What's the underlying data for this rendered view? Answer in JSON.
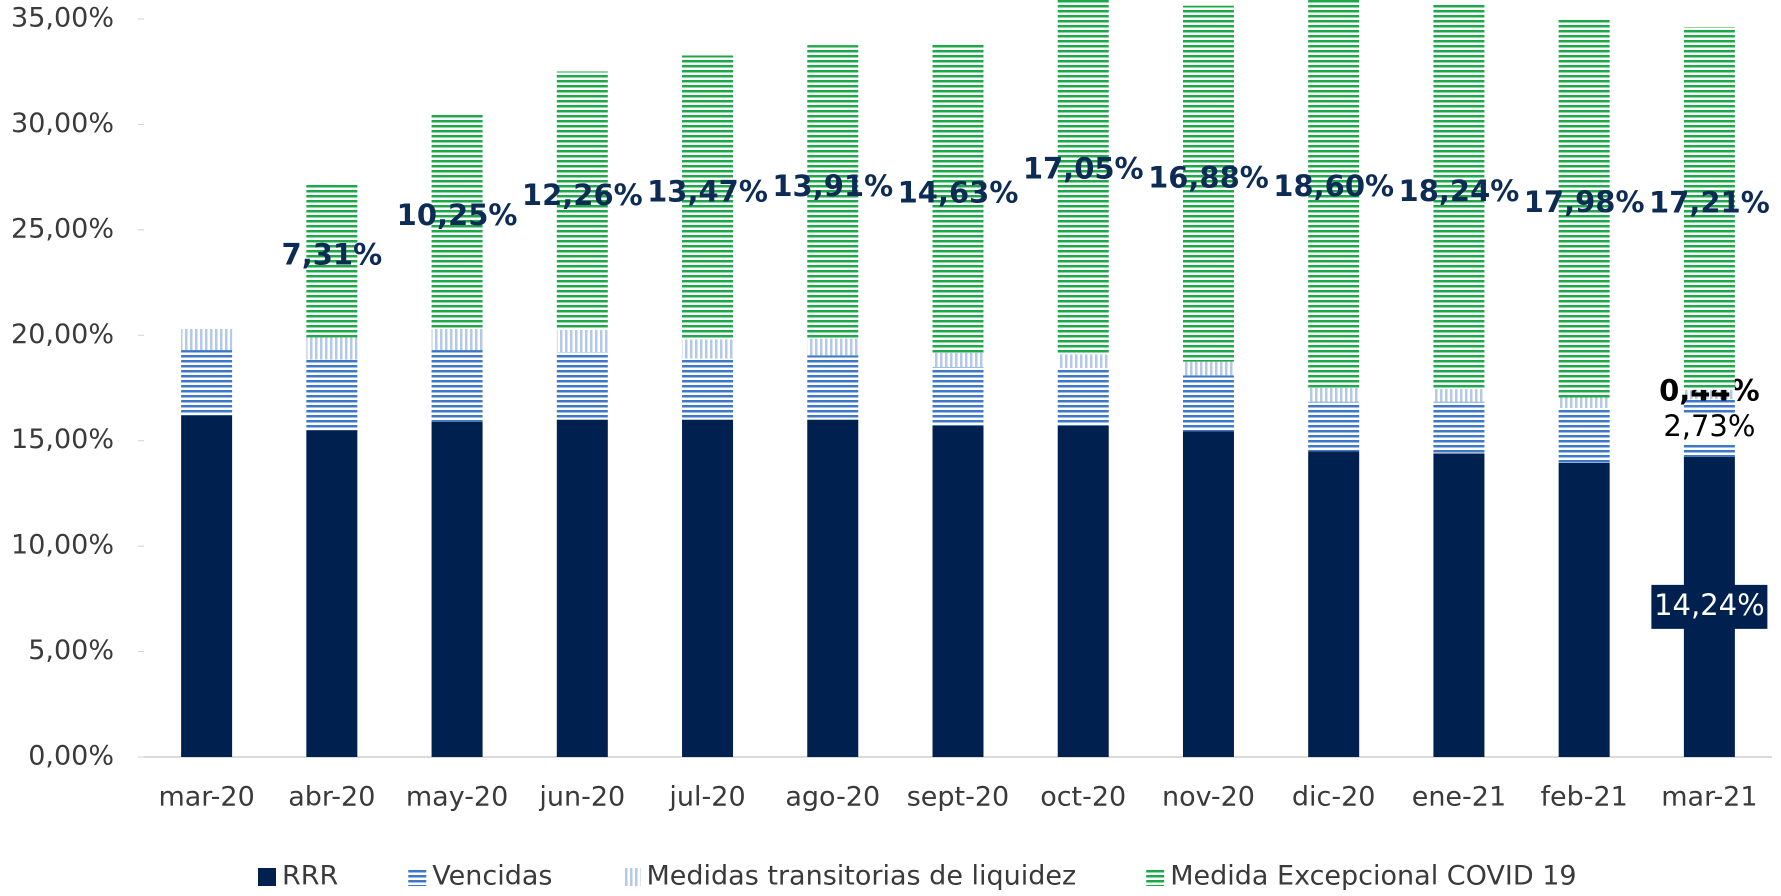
{
  "chart_data": {
    "type": "stacked_bar",
    "categories": [
      "mar-20",
      "abr-20",
      "may-20",
      "jun-20",
      "jul-20",
      "ago-20",
      "sept-20",
      "oct-20",
      "nov-20",
      "dic-20",
      "ene-21",
      "feb-21",
      "mar-21"
    ],
    "series": [
      {
        "name": "RRR",
        "color": "#002050",
        "pattern": "solid",
        "values": [
          16.2,
          15.5,
          15.9,
          16.0,
          16.0,
          16.0,
          15.7,
          15.7,
          15.45,
          14.5,
          14.4,
          13.95,
          14.24
        ],
        "value_labels": [
          null,
          null,
          null,
          null,
          null,
          null,
          null,
          null,
          null,
          null,
          null,
          null,
          "14,24%"
        ]
      },
      {
        "name": "Vencidas",
        "color": "#3f78c6",
        "pattern": "horizontal",
        "values": [
          3.1,
          3.35,
          3.4,
          3.2,
          2.9,
          3.05,
          2.8,
          2.75,
          2.65,
          2.35,
          2.45,
          2.6,
          2.73
        ],
        "value_labels": [
          null,
          null,
          null,
          null,
          null,
          null,
          null,
          null,
          null,
          null,
          null,
          null,
          "2,73%"
        ]
      },
      {
        "name": "Medidas transitorias de liquidez",
        "color": "#b4c9e6",
        "pattern": "vertical",
        "values": [
          1.0,
          1.05,
          1.0,
          1.05,
          0.9,
          0.8,
          0.67,
          0.65,
          0.65,
          0.65,
          0.6,
          0.5,
          0.44
        ],
        "value_labels": [
          null,
          null,
          null,
          null,
          null,
          null,
          null,
          null,
          null,
          null,
          null,
          null,
          "0,44%"
        ]
      },
      {
        "name": "Medida Excepcional COVID 19",
        "color": "#1fa84a",
        "pattern": "horizontal",
        "values": [
          0,
          7.31,
          10.25,
          12.26,
          13.47,
          13.91,
          14.63,
          17.05,
          16.88,
          18.6,
          18.24,
          17.98,
          17.21
        ],
        "value_labels": [
          null,
          "7,31%",
          "10,25%",
          "12,26%",
          "13,47%",
          "13,91%",
          "14,63%",
          "17,05%",
          "16,88%",
          "18,60%",
          "18,24%",
          "17,98%",
          "17,21%"
        ]
      }
    ],
    "ylim": [
      0,
      35
    ],
    "yticks": [
      {
        "value": 0,
        "label": "0,00%"
      },
      {
        "value": 5,
        "label": "5,00%"
      },
      {
        "value": 10,
        "label": "10,00%"
      },
      {
        "value": 15,
        "label": "15,00%"
      },
      {
        "value": 20,
        "label": "20,00%"
      },
      {
        "value": 25,
        "label": "25,00%"
      },
      {
        "value": 30,
        "label": "30,00%"
      },
      {
        "value": 35,
        "label": "35,00%"
      }
    ],
    "grid": false,
    "legend": "bottom"
  }
}
